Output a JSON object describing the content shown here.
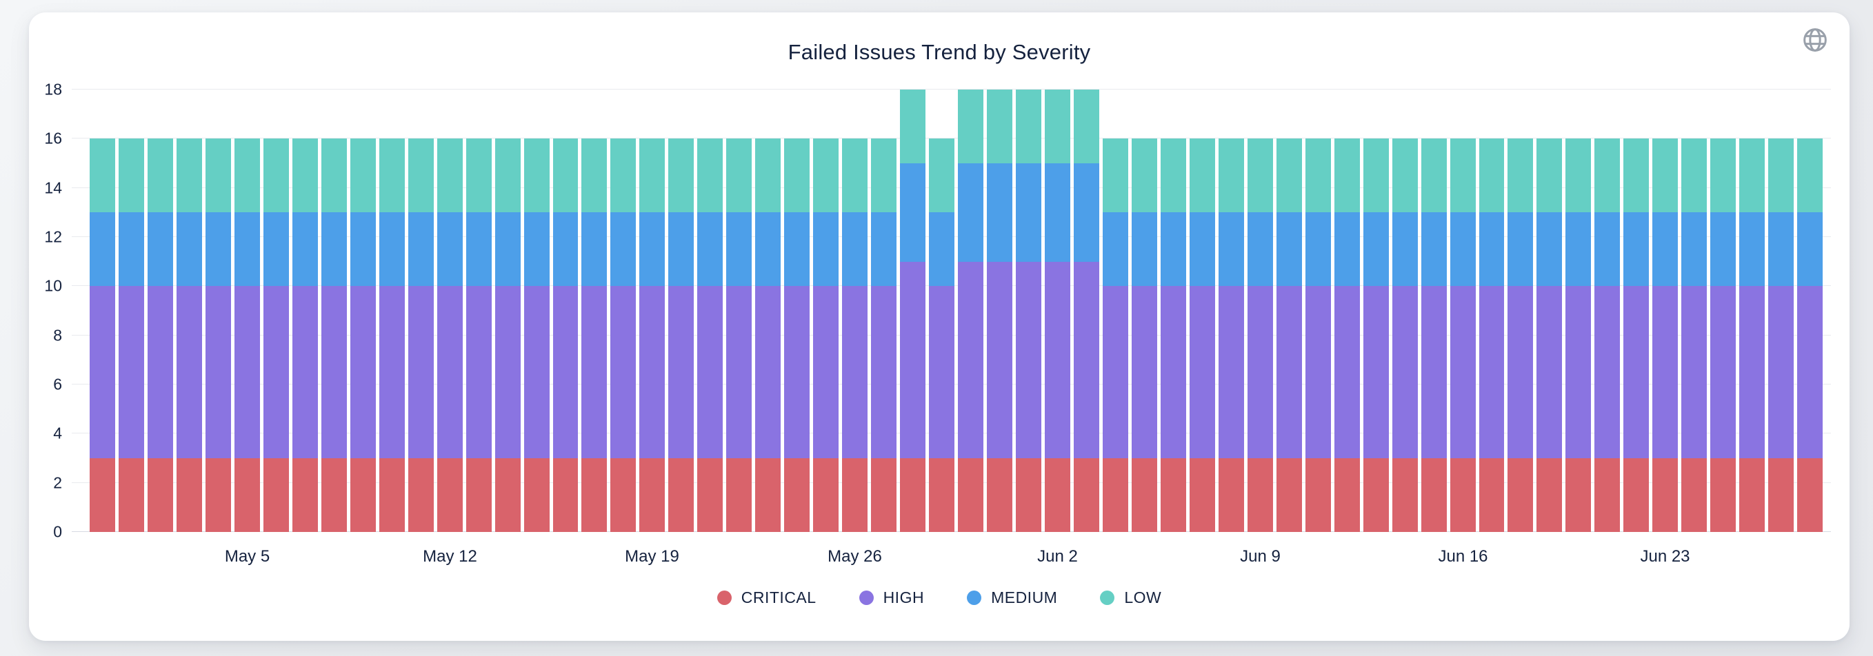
{
  "page": {
    "background": "#e9ebef"
  },
  "card": {
    "background": "#ffffff"
  },
  "icons": {
    "globe": "globe-icon",
    "globe_color": "#99a0aa"
  },
  "colors": {
    "critical": "#d9636b",
    "high": "#8a74e1",
    "medium": "#4d9fe9",
    "low": "#65cfc4",
    "text": "#15223e",
    "gridline": "#e9eaee"
  },
  "chart_data": {
    "type": "bar",
    "stacked": true,
    "title": "Failed Issues Trend by Severity",
    "grid": true,
    "legend_position": "bottom",
    "ylim": [
      0,
      18
    ],
    "y_ticks": [
      0,
      2,
      4,
      6,
      8,
      10,
      12,
      14,
      16,
      18
    ],
    "x_tick_labels": [
      "May 5",
      "May 12",
      "May 19",
      "May 26",
      "Jun 2",
      "Jun 9",
      "Jun 16",
      "Jun 23"
    ],
    "x_tick_indices": [
      5,
      12,
      19,
      26,
      33,
      40,
      47,
      54
    ],
    "x_dates": [
      "Apr 30",
      "May 1",
      "May 2",
      "May 3",
      "May 4",
      "May 5",
      "May 6",
      "May 7",
      "May 8",
      "May 9",
      "May 10",
      "May 11",
      "May 12",
      "May 13",
      "May 14",
      "May 15",
      "May 16",
      "May 17",
      "May 18",
      "May 19",
      "May 20",
      "May 21",
      "May 22",
      "May 23",
      "May 24",
      "May 25",
      "May 26",
      "May 27",
      "May 28",
      "May 29",
      "May 30",
      "May 31",
      "Jun 1",
      "Jun 2",
      "Jun 3",
      "Jun 4",
      "Jun 5",
      "Jun 6",
      "Jun 7",
      "Jun 8",
      "Jun 9",
      "Jun 10",
      "Jun 11",
      "Jun 12",
      "Jun 13",
      "Jun 14",
      "Jun 15",
      "Jun 16",
      "Jun 17",
      "Jun 18",
      "Jun 19",
      "Jun 20",
      "Jun 21",
      "Jun 22",
      "Jun 23",
      "Jun 24",
      "Jun 25",
      "Jun 26",
      "Jun 27",
      "Jun 28"
    ],
    "series": [
      {
        "name": "CRITICAL",
        "color": "#d9636b",
        "values": [
          3,
          3,
          3,
          3,
          3,
          3,
          3,
          3,
          3,
          3,
          3,
          3,
          3,
          3,
          3,
          3,
          3,
          3,
          3,
          3,
          3,
          3,
          3,
          3,
          3,
          3,
          3,
          3,
          3,
          3,
          3,
          3,
          3,
          3,
          3,
          3,
          3,
          3,
          3,
          3,
          3,
          3,
          3,
          3,
          3,
          3,
          3,
          3,
          3,
          3,
          3,
          3,
          3,
          3,
          3,
          3,
          3,
          3,
          3,
          3
        ]
      },
      {
        "name": "HIGH",
        "color": "#8a74e1",
        "values": [
          7,
          7,
          7,
          7,
          7,
          7,
          7,
          7,
          7,
          7,
          7,
          7,
          7,
          7,
          7,
          7,
          7,
          7,
          7,
          7,
          7,
          7,
          7,
          7,
          7,
          7,
          7,
          7,
          8,
          7,
          8,
          8,
          8,
          8,
          8,
          7,
          7,
          7,
          7,
          7,
          7,
          7,
          7,
          7,
          7,
          7,
          7,
          7,
          7,
          7,
          7,
          7,
          7,
          7,
          7,
          7,
          7,
          7,
          7,
          7
        ]
      },
      {
        "name": "MEDIUM",
        "color": "#4d9fe9",
        "values": [
          3,
          3,
          3,
          3,
          3,
          3,
          3,
          3,
          3,
          3,
          3,
          3,
          3,
          3,
          3,
          3,
          3,
          3,
          3,
          3,
          3,
          3,
          3,
          3,
          3,
          3,
          3,
          3,
          4,
          3,
          4,
          4,
          4,
          4,
          4,
          3,
          3,
          3,
          3,
          3,
          3,
          3,
          3,
          3,
          3,
          3,
          3,
          3,
          3,
          3,
          3,
          3,
          3,
          3,
          3,
          3,
          3,
          3,
          3,
          3
        ]
      },
      {
        "name": "LOW",
        "color": "#65cfc4",
        "values": [
          3,
          3,
          3,
          3,
          3,
          3,
          3,
          3,
          3,
          3,
          3,
          3,
          3,
          3,
          3,
          3,
          3,
          3,
          3,
          3,
          3,
          3,
          3,
          3,
          3,
          3,
          3,
          3,
          3,
          3,
          3,
          3,
          3,
          3,
          3,
          3,
          3,
          3,
          3,
          3,
          3,
          3,
          3,
          3,
          3,
          3,
          3,
          3,
          3,
          3,
          3,
          3,
          3,
          3,
          3,
          3,
          3,
          3,
          3,
          3
        ]
      }
    ]
  }
}
